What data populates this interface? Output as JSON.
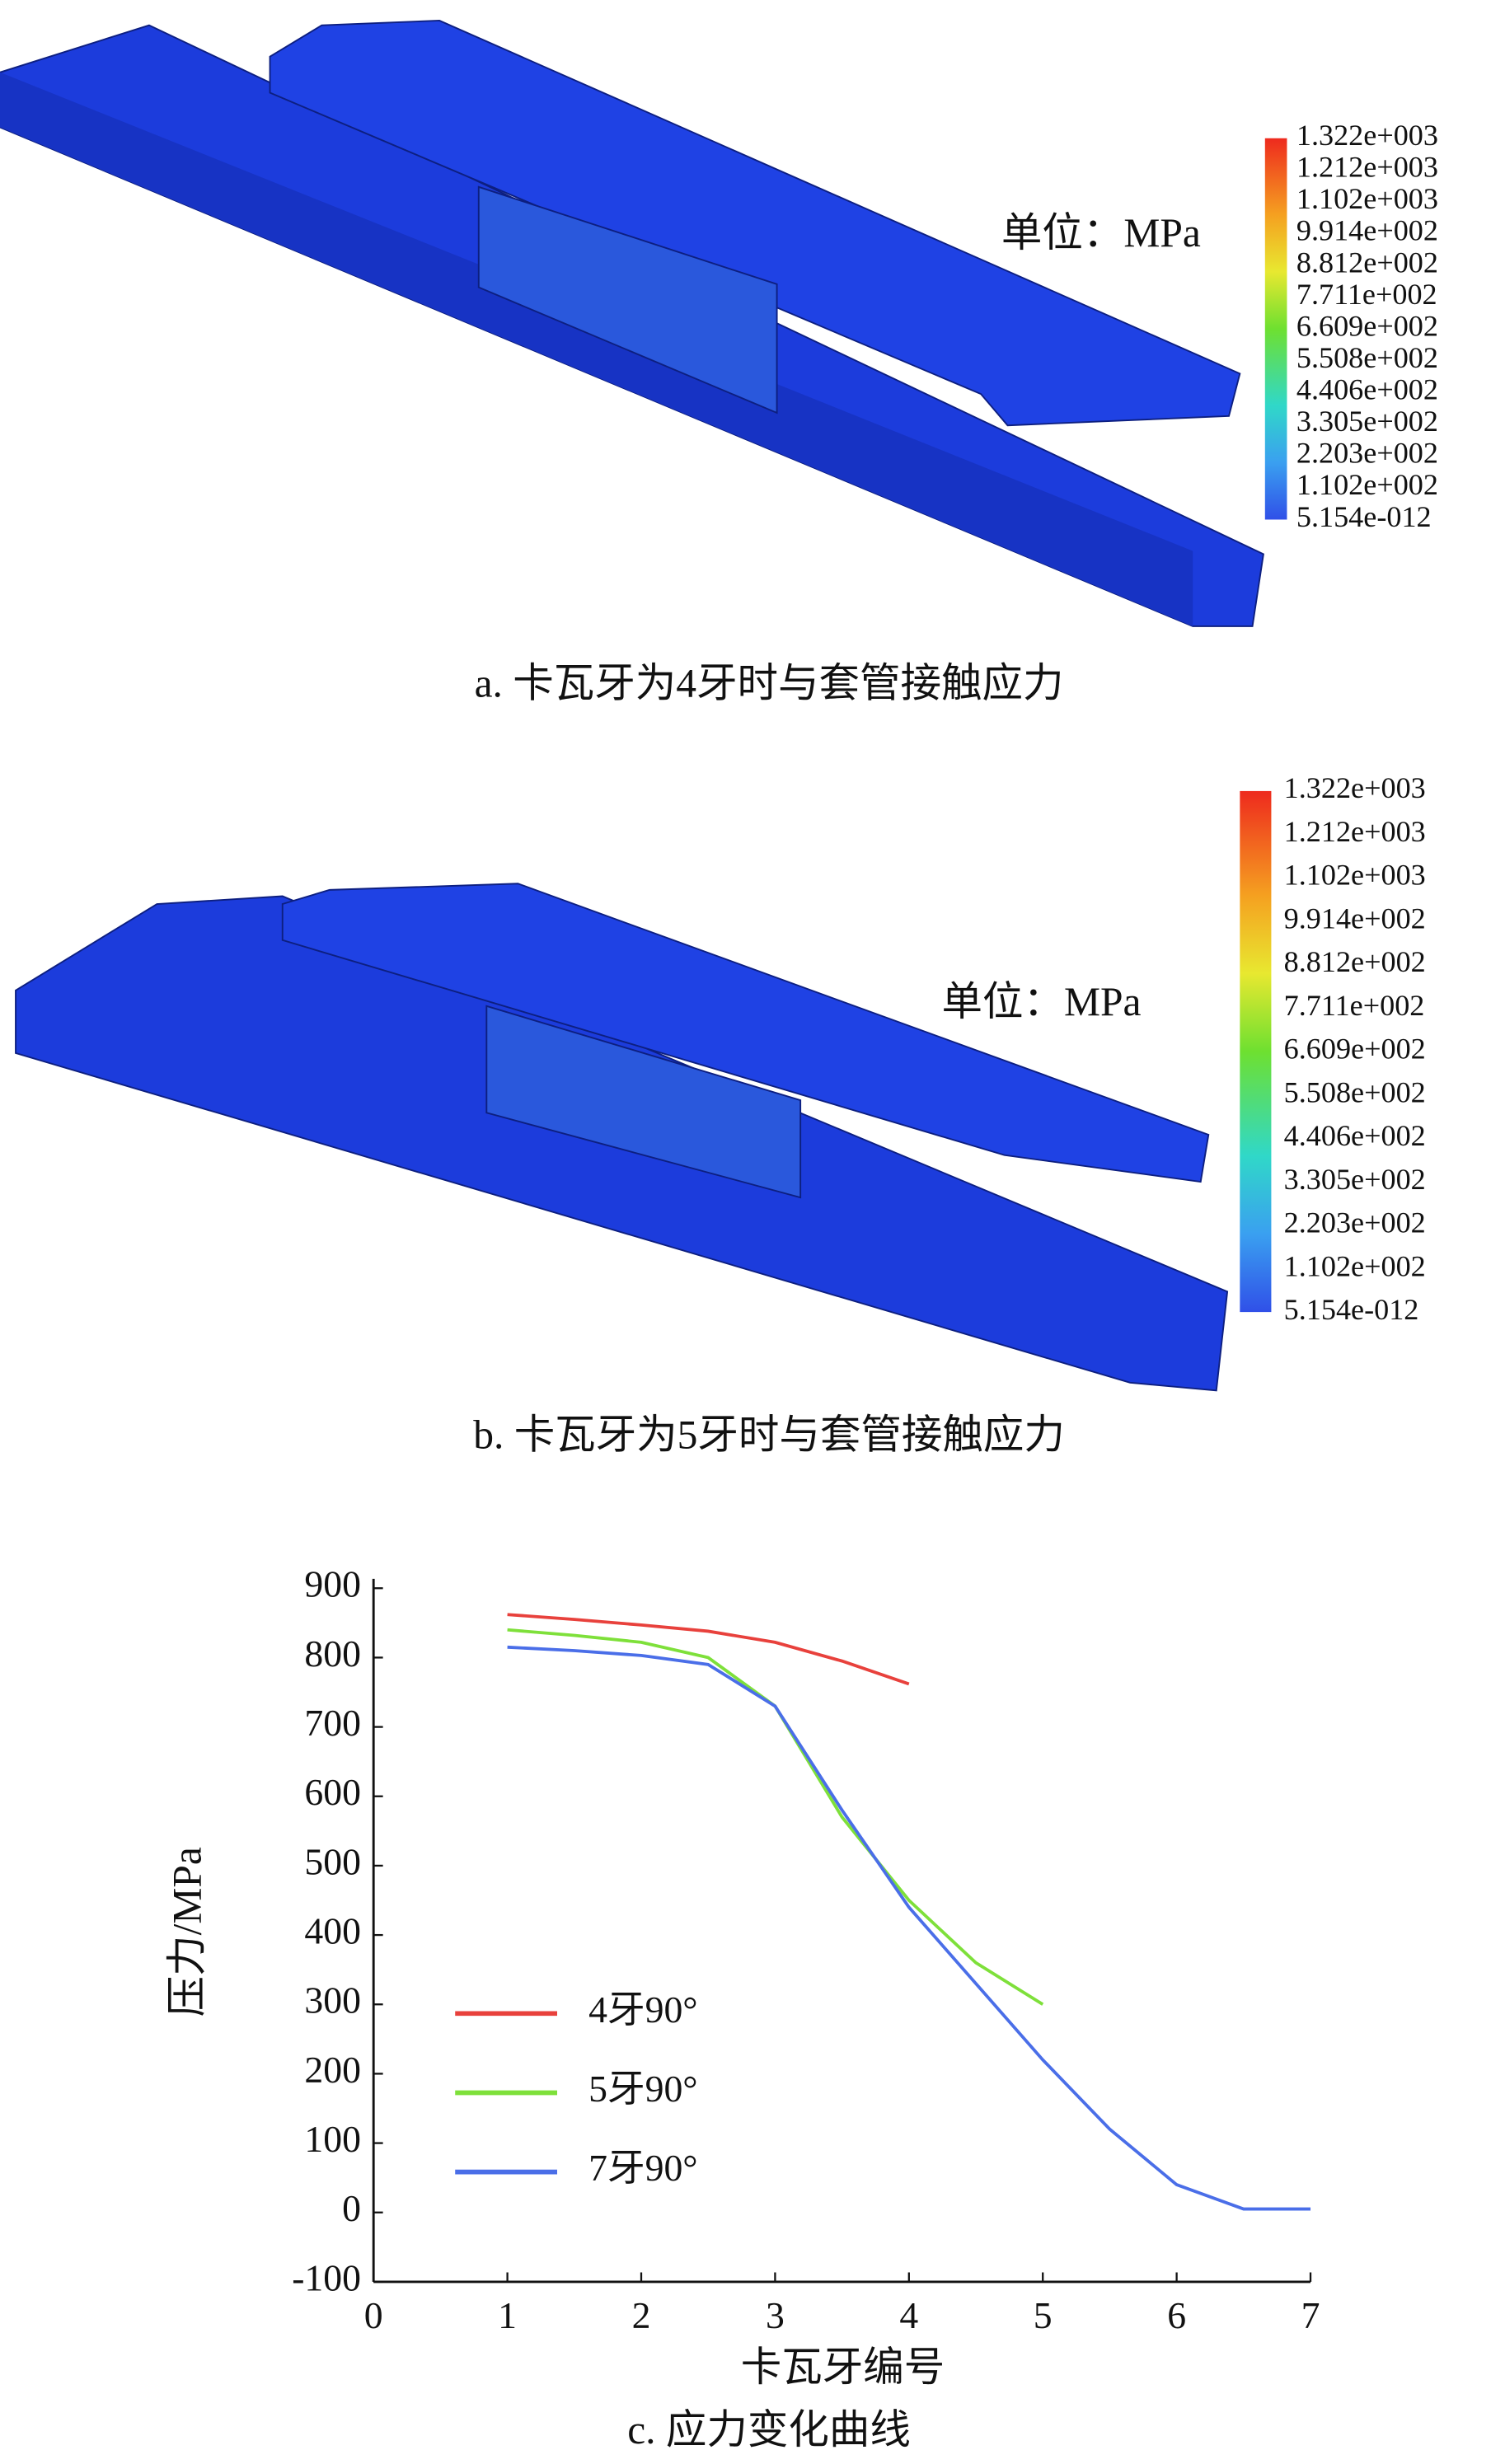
{
  "panels": [
    {
      "caption": "a. 卡瓦牙为4牙时与套管接触应力",
      "unit": "单位：MPa",
      "colorbar": [
        "1.322e+003",
        "1.212e+003",
        "1.102e+003",
        "9.914e+002",
        "8.812e+002",
        "7.711e+002",
        "6.609e+002",
        "5.508e+002",
        "4.406e+002",
        "3.305e+002",
        "2.203e+002",
        "1.102e+002",
        "5.154e-012"
      ]
    },
    {
      "caption": "b. 卡瓦牙为5牙时与套管接触应力",
      "unit": "单位：MPa",
      "colorbar": [
        "1.322e+003",
        "1.212e+003",
        "1.102e+003",
        "9.914e+002",
        "8.812e+002",
        "7.711e+002",
        "6.609e+002",
        "5.508e+002",
        "4.406e+002",
        "3.305e+002",
        "2.203e+002",
        "1.102e+002",
        "5.154e-012"
      ]
    }
  ],
  "chart_data": {
    "type": "line",
    "caption": "c. 应力变化曲线",
    "xlabel": "卡瓦牙编号",
    "ylabel": "压力/MPa",
    "xlim": [
      0,
      7
    ],
    "xticks": [
      0,
      1,
      2,
      3,
      4,
      5,
      6,
      7
    ],
    "ylim": [
      -100,
      900
    ],
    "yticks": [
      -100,
      0,
      100,
      200,
      300,
      400,
      500,
      600,
      700,
      800,
      900
    ],
    "series": [
      {
        "name": "4牙90°",
        "color": "#e8413c",
        "x": [
          1,
          1.5,
          2,
          2.5,
          3,
          3.5,
          4
        ],
        "values": [
          862,
          855,
          847,
          838,
          822,
          795,
          762
        ]
      },
      {
        "name": "5牙90°",
        "color": "#7ee03a",
        "x": [
          1,
          1.5,
          2,
          2.5,
          3,
          3.5,
          4,
          4.5,
          5
        ],
        "values": [
          840,
          832,
          822,
          800,
          730,
          570,
          450,
          360,
          300
        ]
      },
      {
        "name": "7牙90°",
        "color": "#4a6ee8",
        "x": [
          1,
          1.5,
          2,
          2.5,
          3,
          3.5,
          4,
          4.5,
          5,
          5.5,
          6,
          6.5,
          7
        ],
        "values": [
          815,
          810,
          803,
          790,
          730,
          580,
          440,
          330,
          220,
          120,
          40,
          5,
          5
        ]
      }
    ]
  }
}
